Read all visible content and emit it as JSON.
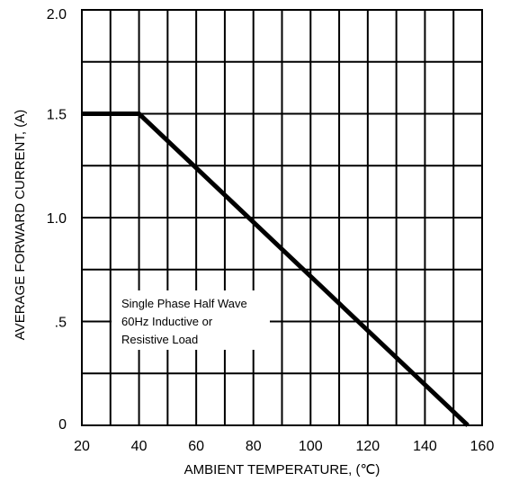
{
  "chart_data": {
    "type": "line",
    "title": "",
    "xlabel": "AMBIENT TEMPERATURE, (℃)",
    "ylabel": "AVERAGE FORWARD CURRENT, (A)",
    "xlim": [
      20,
      160
    ],
    "ylim": [
      0,
      2.0
    ],
    "x_ticks": [
      20,
      40,
      60,
      80,
      100,
      120,
      140,
      160
    ],
    "x_tick_labels": [
      "20",
      "40",
      "60",
      "80",
      "100",
      "120",
      "140",
      "160"
    ],
    "y_ticks": [
      0,
      0.5,
      1.0,
      1.5,
      2.0
    ],
    "y_tick_labels": [
      "0",
      ".5",
      "1.0",
      "1.5",
      "2.0"
    ],
    "grid": true,
    "series": [
      {
        "x": [
          20,
          40,
          155
        ],
        "y": [
          1.5,
          1.5,
          0
        ]
      }
    ],
    "annotation": [
      "Single Phase Half Wave",
      "60Hz Inductive or",
      "Resistive Load"
    ]
  }
}
